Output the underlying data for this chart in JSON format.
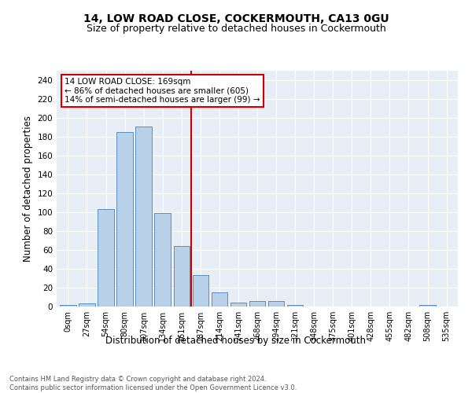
{
  "title1": "14, LOW ROAD CLOSE, COCKERMOUTH, CA13 0GU",
  "title2": "Size of property relative to detached houses in Cockermouth",
  "xlabel": "Distribution of detached houses by size in Cockermouth",
  "ylabel": "Number of detached properties",
  "bar_labels": [
    "0sqm",
    "27sqm",
    "54sqm",
    "80sqm",
    "107sqm",
    "134sqm",
    "161sqm",
    "187sqm",
    "214sqm",
    "241sqm",
    "268sqm",
    "294sqm",
    "321sqm",
    "348sqm",
    "375sqm",
    "401sqm",
    "428sqm",
    "455sqm",
    "482sqm",
    "508sqm",
    "535sqm"
  ],
  "bar_heights": [
    2,
    3,
    103,
    185,
    191,
    99,
    64,
    33,
    15,
    4,
    6,
    6,
    2,
    0,
    0,
    0,
    0,
    0,
    0,
    2,
    0
  ],
  "bar_color": "#b8d0e8",
  "bar_edge_color": "#5a8fc3",
  "vline_color": "#cc0000",
  "annotation_text": "14 LOW ROAD CLOSE: 169sqm\n← 86% of detached houses are smaller (605)\n14% of semi-detached houses are larger (99) →",
  "annotation_box_color": "#cc0000",
  "ylim": [
    0,
    250
  ],
  "yticks": [
    0,
    20,
    40,
    60,
    80,
    100,
    120,
    140,
    160,
    180,
    200,
    220,
    240
  ],
  "background_color": "#e8eef5",
  "footer_text": "Contains HM Land Registry data © Crown copyright and database right 2024.\nContains public sector information licensed under the Open Government Licence v3.0.",
  "title1_fontsize": 10,
  "title2_fontsize": 9,
  "xlabel_fontsize": 8.5,
  "ylabel_fontsize": 8.5,
  "footer_fontsize": 6.0
}
